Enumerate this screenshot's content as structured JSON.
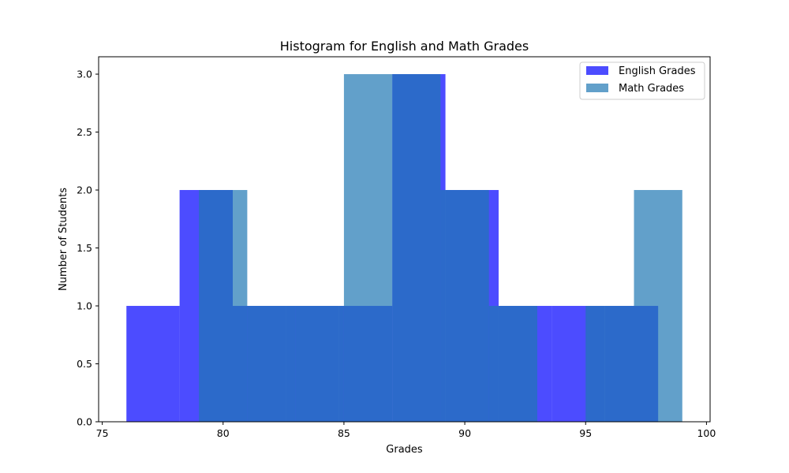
{
  "chart_data": {
    "type": "bar",
    "subtype": "histogram",
    "title": "Histogram for English and Math Grades",
    "xlabel": "Grades",
    "ylabel": "Number of Students",
    "xlim": [
      74.85,
      100.15
    ],
    "ylim": [
      0,
      3.15
    ],
    "x_ticks": [
      75,
      80,
      85,
      90,
      95,
      100
    ],
    "y_ticks": [
      0.0,
      0.5,
      1.0,
      1.5,
      2.0,
      2.5,
      3.0
    ],
    "x_tick_labels": [
      "75",
      "80",
      "85",
      "90",
      "95",
      "100"
    ],
    "y_tick_labels": [
      "0.0",
      "0.5",
      "1.0",
      "1.5",
      "2.0",
      "2.5",
      "3.0"
    ],
    "grid": false,
    "legend_position": "top-right",
    "series": [
      {
        "name": "English Grades",
        "color": "#0000ff",
        "alpha": 0.7,
        "bin_edges": [
          76.0,
          78.2,
          80.4,
          82.6,
          84.8,
          87.0,
          89.2,
          91.4,
          93.6,
          95.8,
          98.0
        ],
        "counts": [
          1,
          2,
          1,
          1,
          1,
          3,
          2,
          1,
          1,
          1
        ]
      },
      {
        "name": "Math Grades",
        "color": "#1f77b4",
        "alpha": 0.7,
        "bin_edges": [
          79.0,
          81.0,
          83.0,
          85.0,
          87.0,
          89.0,
          91.0,
          93.0,
          95.0,
          97.0,
          99.0
        ],
        "counts": [
          2,
          1,
          1,
          3,
          3,
          2,
          1,
          0,
          1,
          2
        ]
      }
    ]
  }
}
